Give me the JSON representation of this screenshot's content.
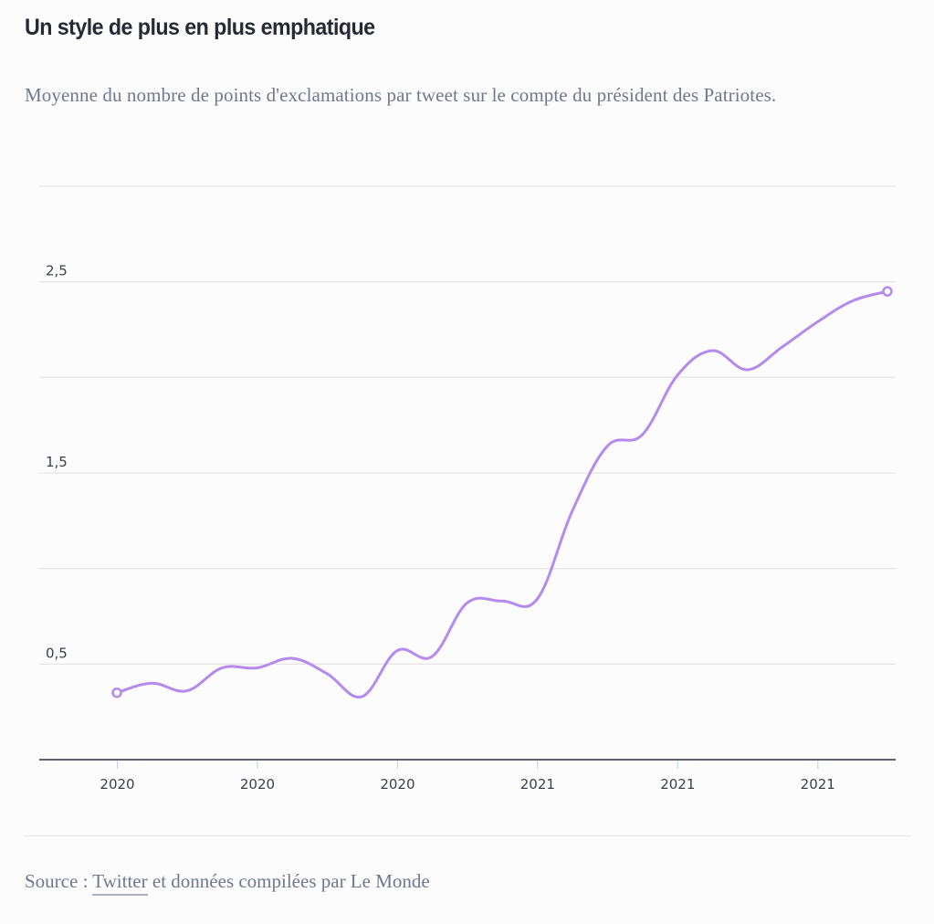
{
  "header": {
    "title": "Un style de plus en plus emphatique",
    "subtitle": "Moyenne du nombre de points d'exclamations par tweet sur le compte du président des Patriotes."
  },
  "footer": {
    "source_prefix": "Source : ",
    "source_link": "Twitter",
    "source_suffix": " et données compilées par Le Monde"
  },
  "colors": {
    "line": "#b48aec",
    "grid": "#e6e6e8",
    "axis": "#2b2f3a",
    "tick": "#c6d2ea"
  },
  "chart_data": {
    "type": "line",
    "title": "Un style de plus en plus emphatique",
    "subtitle": "Moyenne du nombre de points d'exclamations par tweet sur le compte du président des Patriotes.",
    "xlabel": "",
    "ylabel": "",
    "ylim": [
      0,
      3
    ],
    "yticks": [
      0.5,
      1.5,
      2.5
    ],
    "ytick_labels": [
      "0,5",
      "1,5",
      "2,5"
    ],
    "gridlines": [
      0.5,
      1,
      1.5,
      2,
      2.5,
      3
    ],
    "grid": true,
    "x_tick_labels": [
      "2020",
      "2020",
      "2020",
      "2021",
      "2021",
      "2021"
    ],
    "x_tick_positions": [
      0,
      4,
      8,
      12,
      16,
      20
    ],
    "curve": "smooth",
    "series": [
      {
        "name": "Points d'exclamation par tweet",
        "x": [
          0,
          1,
          2,
          3,
          4,
          5,
          6,
          7,
          8,
          9,
          10,
          11,
          12,
          13,
          14,
          15,
          16,
          17,
          18,
          19,
          20,
          21,
          22
        ],
        "values": [
          0.35,
          0.4,
          0.36,
          0.48,
          0.48,
          0.53,
          0.45,
          0.33,
          0.57,
          0.54,
          0.82,
          0.83,
          0.84,
          1.3,
          1.64,
          1.7,
          2.01,
          2.14,
          2.04,
          2.16,
          2.29,
          2.4,
          2.45
        ]
      }
    ],
    "legend": "none"
  }
}
